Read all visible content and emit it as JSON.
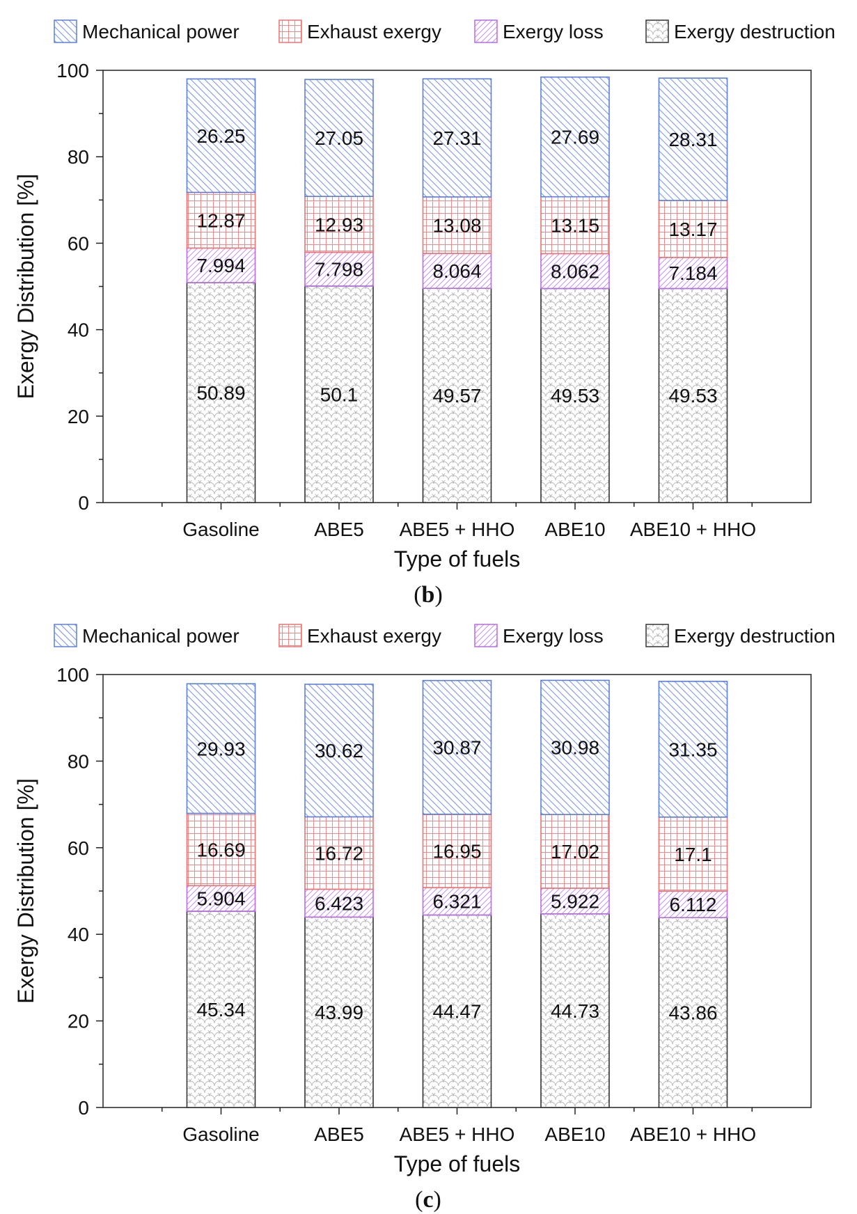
{
  "legend": [
    {
      "key": "mechanical",
      "label": "Mechanical power",
      "color": "#5b7fe0"
    },
    {
      "key": "exhaust",
      "label": "Exhaust exergy",
      "color": "#f07070"
    },
    {
      "key": "loss",
      "label": "Exergy loss",
      "color": "#b86ae8"
    },
    {
      "key": "destruction",
      "label": "Exergy destruction",
      "color": "#333333"
    }
  ],
  "chart_data": [
    {
      "type": "bar",
      "stacked": true,
      "panel_label": {
        "open": "(",
        "letter": "b",
        "close": ")"
      },
      "xlabel": "Type of fuels",
      "ylabel": "Exergy Distribution [%]",
      "ylim": [
        0,
        100
      ],
      "yticks": [
        0,
        20,
        40,
        60,
        80,
        100
      ],
      "categories": [
        "Gasoline",
        "ABE5",
        "ABE5 + HHO",
        "ABE10",
        "ABE10 + HHO"
      ],
      "series": [
        {
          "name": "Exergy destruction",
          "key": "destruction",
          "values": [
            50.89,
            50.1,
            49.57,
            49.53,
            49.53
          ],
          "labels": [
            "50.89",
            "50.1",
            "49.57",
            "49.53",
            "49.53"
          ]
        },
        {
          "name": "Exergy loss",
          "key": "loss",
          "values": [
            7.994,
            7.798,
            8.064,
            8.062,
            7.184
          ],
          "labels": [
            "7.994",
            "7.798",
            "8.064",
            "8.062",
            "7.184"
          ]
        },
        {
          "name": "Exhaust exergy",
          "key": "exhaust",
          "values": [
            12.87,
            12.93,
            13.08,
            13.15,
            13.17
          ],
          "labels": [
            "12.87",
            "12.93",
            "13.08",
            "13.15",
            "13.17"
          ]
        },
        {
          "name": "Mechanical power",
          "key": "mechanical",
          "values": [
            26.25,
            27.05,
            27.31,
            27.69,
            28.31
          ],
          "labels": [
            "26.25",
            "27.05",
            "27.31",
            "27.69",
            "28.31"
          ]
        }
      ]
    },
    {
      "type": "bar",
      "stacked": true,
      "panel_label": {
        "open": "(",
        "letter": "c",
        "close": ")"
      },
      "xlabel": "Type of fuels",
      "ylabel": "Exergy Distribution [%]",
      "ylim": [
        0,
        100
      ],
      "yticks": [
        0,
        20,
        40,
        60,
        80,
        100
      ],
      "categories": [
        "Gasoline",
        "ABE5",
        "ABE5 + HHO",
        "ABE10",
        "ABE10 + HHO"
      ],
      "series": [
        {
          "name": "Exergy destruction",
          "key": "destruction",
          "values": [
            45.34,
            43.99,
            44.47,
            44.73,
            43.86
          ],
          "labels": [
            "45.34",
            "43.99",
            "44.47",
            "44.73",
            "43.86"
          ]
        },
        {
          "name": "Exergy loss",
          "key": "loss",
          "values": [
            5.904,
            6.423,
            6.321,
            5.922,
            6.112
          ],
          "labels": [
            "5.904",
            "6.423",
            "6.321",
            "5.922",
            "6.112"
          ]
        },
        {
          "name": "Exhaust exergy",
          "key": "exhaust",
          "values": [
            16.69,
            16.72,
            16.95,
            17.02,
            17.1
          ],
          "labels": [
            "16.69",
            "16.72",
            "16.95",
            "17.02",
            "17.1"
          ]
        },
        {
          "name": "Mechanical power",
          "key": "mechanical",
          "values": [
            29.93,
            30.62,
            30.87,
            30.98,
            31.35
          ],
          "labels": [
            "29.93",
            "30.62",
            "30.87",
            "30.98",
            "31.35"
          ]
        }
      ]
    }
  ]
}
